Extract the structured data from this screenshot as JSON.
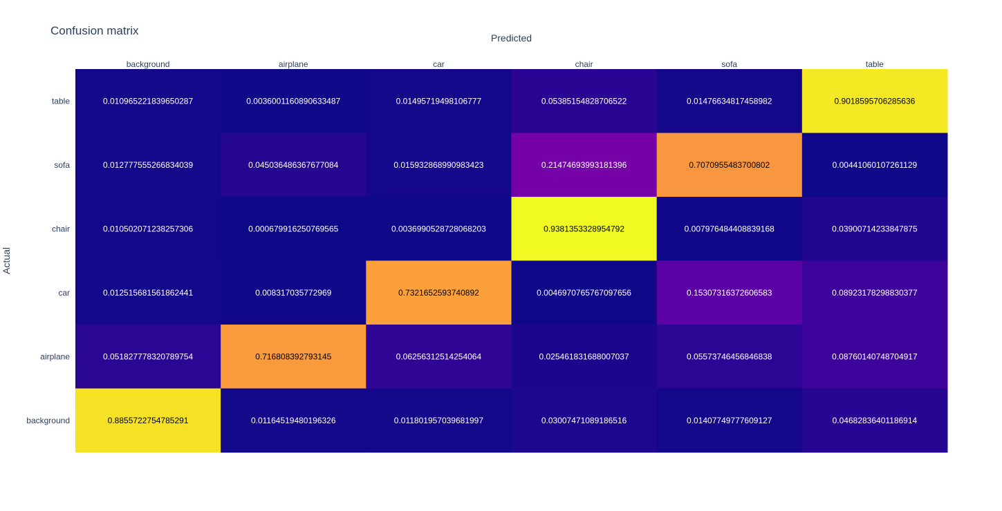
{
  "chart_data": {
    "type": "heatmap",
    "title": "Confusion matrix",
    "xlabel": "Predicted",
    "ylabel": "Actual",
    "x_categories": [
      "background",
      "airplane",
      "car",
      "chair",
      "sofa",
      "table"
    ],
    "y_categories_top_to_bottom": [
      "table",
      "sofa",
      "chair",
      "car",
      "airplane",
      "background"
    ],
    "values_top_to_bottom": [
      [
        "0.010965221839650287",
        "0.0036001160890633487",
        "0.01495719498106777",
        "0.05385154828706522",
        "0.01476634817458982",
        "0.9018595706285636"
      ],
      [
        "0.012777555266834039",
        "0.045036486367677084",
        "0.015932868990983423",
        "0.21474693993181396",
        "0.7070955483700802",
        "0.00441060107261129"
      ],
      [
        "0.010502071238257306",
        "0.000679916250769565",
        "0.0036990528728068203",
        "0.9381353328954792",
        "0.007976484408839168",
        "0.03900714233847875"
      ],
      [
        "0.012515681561862441",
        "0.008317035772969",
        "0.7321652593740892",
        "0.0046970765767097656",
        "0.15307316372606583",
        "0.08923178298830377"
      ],
      [
        "0.051827778320789754",
        "0.716808392793145",
        "0.06256312514254064",
        "0.025461831688007037",
        "0.05573746456846838",
        "0.08760140748704917"
      ],
      [
        "0.8855722754785291",
        "0.01164519480196326",
        "0.011801957039681997",
        "0.03007471089186516",
        "0.01407749777609127",
        "0.04682836401186914"
      ]
    ],
    "colorscale": "plasma",
    "xaxis_side": "top",
    "show_text": true
  }
}
